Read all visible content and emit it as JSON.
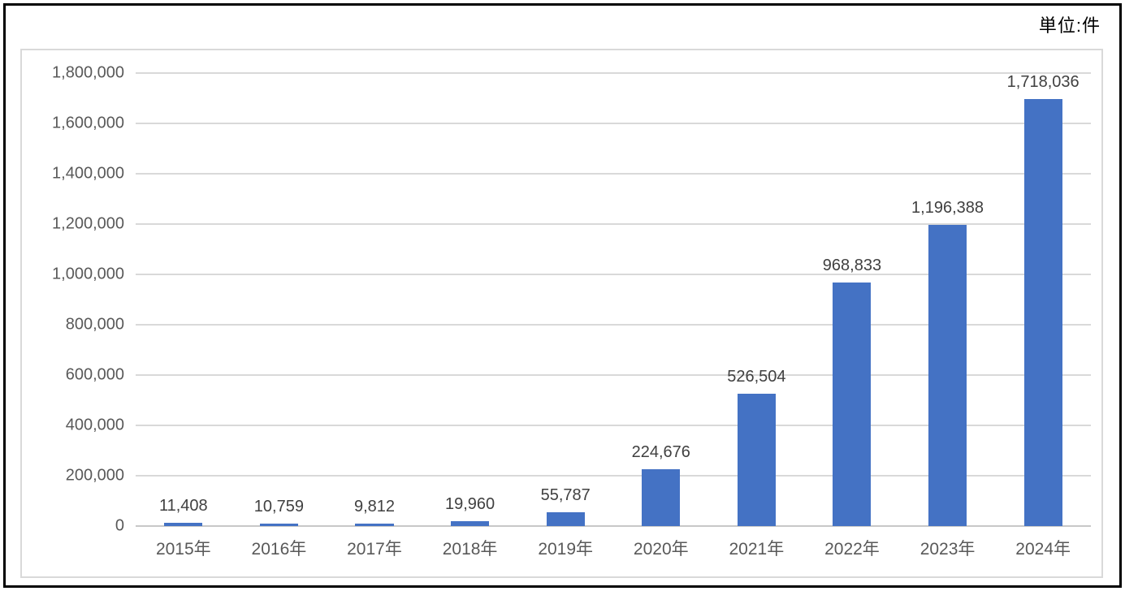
{
  "unit_label": "単位:件",
  "colors": {
    "bar": "#4472C4",
    "gridline": "#D9D9D9",
    "axis_line": "#C8C8C8",
    "tick_text": "#595959",
    "value_text": "#404040",
    "outer_frame": "#000000",
    "plot_box_border": "#D9D9D9",
    "background": "#FFFFFF"
  },
  "chart_data": {
    "type": "bar",
    "title": "",
    "unit_note": "単位:件",
    "categories": [
      "2015年",
      "2016年",
      "2017年",
      "2018年",
      "2019年",
      "2020年",
      "2021年",
      "2022年",
      "2023年",
      "2024年"
    ],
    "values": [
      11408,
      10759,
      9812,
      19960,
      55787,
      224676,
      526504,
      968833,
      1196388,
      1718036
    ],
    "value_labels": [
      "11,408",
      "10,759",
      "9,812",
      "19,960",
      "55,787",
      "224,676",
      "526,504",
      "968,833",
      "1,196,388",
      "1,718,036"
    ],
    "xlabel": "",
    "ylabel": "",
    "ylim": [
      0,
      1800000
    ],
    "ytick_step": 200000,
    "ytick_labels": [
      "0",
      "200,000",
      "400,000",
      "600,000",
      "800,000",
      "1,000,000",
      "1,200,000",
      "1,400,000",
      "1,600,000",
      "1,800,000"
    ],
    "grid": true,
    "legend_position": "none",
    "series_color": "#4472C4"
  }
}
